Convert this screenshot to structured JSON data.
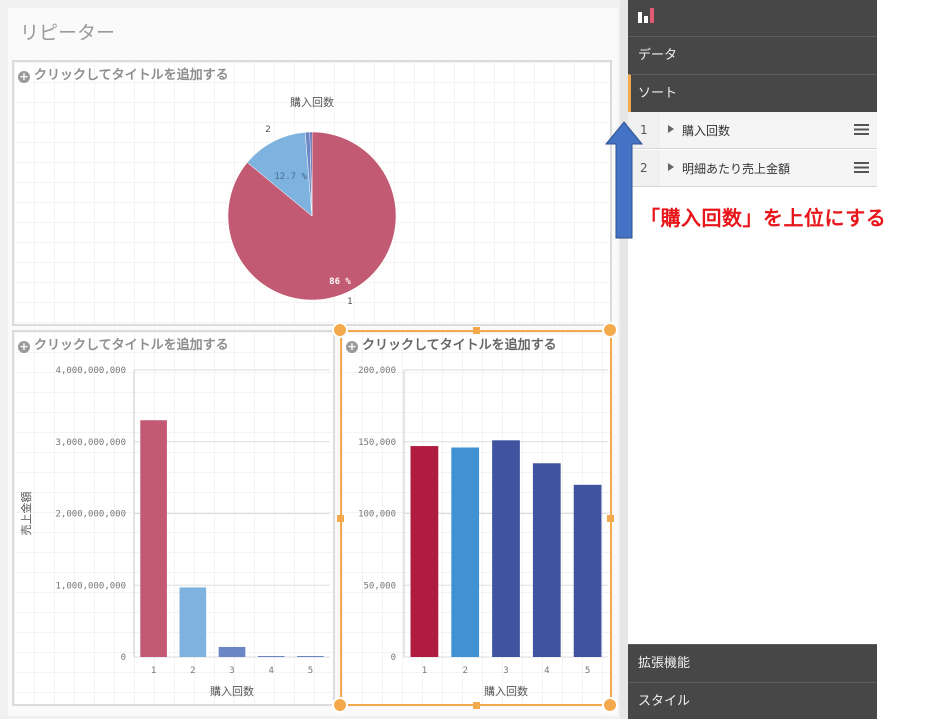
{
  "sheet": {
    "title": "リピーター"
  },
  "placeholder_title": "クリックしてタイトルを追加する",
  "pie_chart": {
    "title": "購入回数",
    "chart_data": {
      "type": "pie",
      "title": "購入回数",
      "slices": [
        {
          "label": "1",
          "percent": 86,
          "value_label": "86 %",
          "color": "#c35a73"
        },
        {
          "label": "2",
          "percent": 12.7,
          "value_label": "12.7 %",
          "color": "#7eb3e0"
        },
        {
          "label": "",
          "percent": 0.9,
          "value_label": "",
          "color": "#6a86c4"
        },
        {
          "label": "",
          "percent": 0.4,
          "value_label": "",
          "color": "#4a5aa8"
        }
      ]
    }
  },
  "bar_chart_1": {
    "chart_data": {
      "type": "bar",
      "categories": [
        "1",
        "2",
        "3",
        "4",
        "5"
      ],
      "values": [
        3300000000,
        970000000,
        140000000,
        12000000,
        2000000
      ],
      "colors": [
        "#c35a73",
        "#7eb3e0",
        "#6a86c4",
        "#6a86c4",
        "#6a86c4"
      ],
      "xlabel": "購入回数",
      "ylabel": "売上金額",
      "ylim": [
        0,
        4000000000
      ],
      "yticks": [
        "0",
        "1,000,000,000",
        "2,000,000,000",
        "3,000,000,000",
        "4,000,000,000"
      ]
    }
  },
  "bar_chart_2": {
    "chart_data": {
      "type": "bar",
      "categories": [
        "1",
        "2",
        "3",
        "4",
        "5"
      ],
      "values": [
        147000,
        146000,
        151000,
        135000,
        120000
      ],
      "colors": [
        "#b01c40",
        "#4192d3",
        "#3f53a0",
        "#3f53a0",
        "#3f53a0"
      ],
      "xlabel": "購入回数",
      "ylabel": "",
      "ylim": [
        0,
        200000
      ],
      "yticks": [
        "0",
        "50,000",
        "100,000",
        "150,000",
        "200,000"
      ]
    }
  },
  "panel": {
    "top_icon": "bar-chart-icon",
    "data_label": "データ",
    "sort_label": "ソート",
    "sort_items": [
      {
        "num": "1",
        "label": "購入回数"
      },
      {
        "num": "2",
        "label": "明細あたり売上金額"
      }
    ],
    "extensions_label": "拡張機能",
    "style_label": "スタイル"
  },
  "annotation": {
    "text": "「購入回数」を上位にする",
    "color": "#e8161a",
    "arrow_color": "#4472c4"
  }
}
